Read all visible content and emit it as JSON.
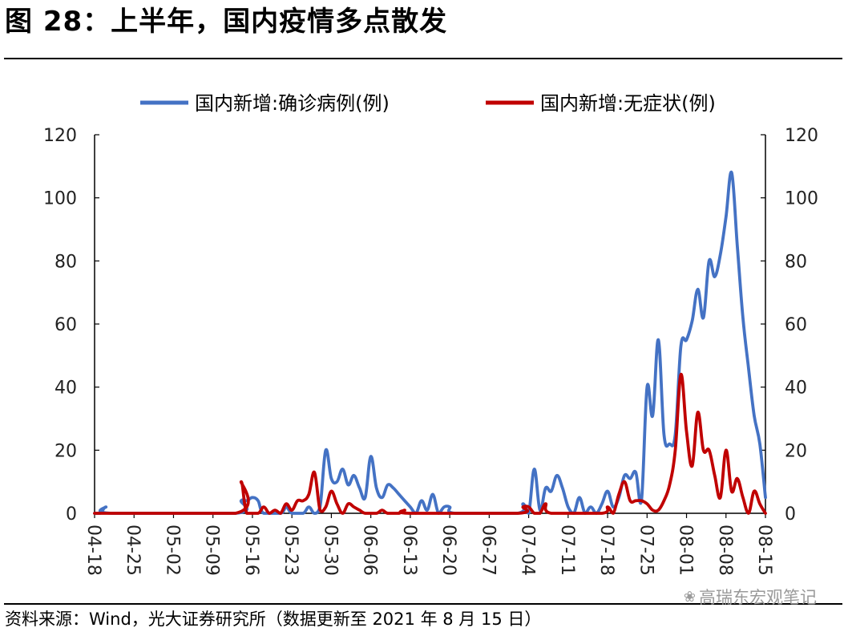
{
  "figure": {
    "title": "图 28：上半年，国内疫情多点散发",
    "source": "资料来源：Wind，光大证券研究所（数据更新至 2021 年 8 月 15 日）",
    "watermark": "高瑞东宏观笔记"
  },
  "chart_data": {
    "type": "line",
    "title": "",
    "xlabel": "",
    "ylabel": "",
    "ylim": [
      0,
      120
    ],
    "y2lim": [
      0,
      120
    ],
    "y_ticks": [
      "0",
      "20",
      "40",
      "60",
      "80",
      "100",
      "120"
    ],
    "y2_ticks": [
      "0",
      "20",
      "40",
      "60",
      "80",
      "100",
      "120"
    ],
    "x_range": [
      "2021-04-18",
      "2021-08-15"
    ],
    "x_ticks": [
      "04-18",
      "04-25",
      "05-02",
      "05-09",
      "05-16",
      "05-23",
      "05-30",
      "06-06",
      "06-13",
      "06-20",
      "06-27",
      "07-04",
      "07-11",
      "07-18",
      "07-25",
      "08-01",
      "08-08",
      "08-15"
    ],
    "legend_position": "top",
    "grid": false,
    "series": [
      {
        "name": "国内新增:确诊病例(例)",
        "color": "#4472C4",
        "axis": "left",
        "points": [
          [
            "2021-04-18",
            0
          ],
          [
            "2021-04-19",
            0
          ],
          [
            "2021-04-20",
            2
          ],
          [
            "2021-04-21",
            0
          ],
          [
            "2021-05-13",
            0
          ],
          [
            "2021-05-14",
            4
          ],
          [
            "2021-05-15",
            4
          ],
          [
            "2021-05-16",
            5
          ],
          [
            "2021-05-17",
            4
          ],
          [
            "2021-05-18",
            0
          ],
          [
            "2021-05-21",
            0
          ],
          [
            "2021-05-22",
            2
          ],
          [
            "2021-05-23",
            0
          ],
          [
            "2021-05-25",
            0
          ],
          [
            "2021-05-26",
            2
          ],
          [
            "2021-05-27",
            0
          ],
          [
            "2021-05-28",
            2
          ],
          [
            "2021-05-29",
            20
          ],
          [
            "2021-05-30",
            11
          ],
          [
            "2021-05-31",
            10
          ],
          [
            "2021-06-01",
            14
          ],
          [
            "2021-06-02",
            9
          ],
          [
            "2021-06-03",
            12
          ],
          [
            "2021-06-04",
            8
          ],
          [
            "2021-06-05",
            5
          ],
          [
            "2021-06-06",
            18
          ],
          [
            "2021-06-07",
            8
          ],
          [
            "2021-06-08",
            5
          ],
          [
            "2021-06-09",
            9
          ],
          [
            "2021-06-10",
            8
          ],
          [
            "2021-06-11",
            6
          ],
          [
            "2021-06-12",
            4
          ],
          [
            "2021-06-13",
            2
          ],
          [
            "2021-06-14",
            0
          ],
          [
            "2021-06-15",
            4
          ],
          [
            "2021-06-16",
            1
          ],
          [
            "2021-06-17",
            6
          ],
          [
            "2021-06-18",
            0
          ],
          [
            "2021-06-19",
            2
          ],
          [
            "2021-06-20",
            2
          ],
          [
            "2021-06-21",
            0
          ],
          [
            "2021-07-02",
            0
          ],
          [
            "2021-07-03",
            3
          ],
          [
            "2021-07-04",
            0
          ],
          [
            "2021-07-05",
            14
          ],
          [
            "2021-07-06",
            1
          ],
          [
            "2021-07-07",
            8
          ],
          [
            "2021-07-08",
            7
          ],
          [
            "2021-07-09",
            12
          ],
          [
            "2021-07-10",
            8
          ],
          [
            "2021-07-11",
            2
          ],
          [
            "2021-07-12",
            0
          ],
          [
            "2021-07-13",
            5
          ],
          [
            "2021-07-14",
            0
          ],
          [
            "2021-07-15",
            2
          ],
          [
            "2021-07-16",
            0
          ],
          [
            "2021-07-17",
            3
          ],
          [
            "2021-07-18",
            7
          ],
          [
            "2021-07-19",
            2
          ],
          [
            "2021-07-20",
            5
          ],
          [
            "2021-07-21",
            12
          ],
          [
            "2021-07-22",
            11
          ],
          [
            "2021-07-23",
            13
          ],
          [
            "2021-07-24",
            4
          ],
          [
            "2021-07-25",
            40
          ],
          [
            "2021-07-26",
            31
          ],
          [
            "2021-07-27",
            55
          ],
          [
            "2021-07-28",
            25
          ],
          [
            "2021-07-29",
            22
          ],
          [
            "2021-07-30",
            25
          ],
          [
            "2021-07-31",
            53
          ],
          [
            "2021-08-01",
            55
          ],
          [
            "2021-08-02",
            61
          ],
          [
            "2021-08-03",
            71
          ],
          [
            "2021-08-04",
            62
          ],
          [
            "2021-08-05",
            80
          ],
          [
            "2021-08-06",
            75
          ],
          [
            "2021-08-07",
            82
          ],
          [
            "2021-08-08",
            94
          ],
          [
            "2021-08-09",
            108
          ],
          [
            "2021-08-10",
            85
          ],
          [
            "2021-08-11",
            62
          ],
          [
            "2021-08-12",
            46
          ],
          [
            "2021-08-13",
            31
          ],
          [
            "2021-08-14",
            22
          ],
          [
            "2021-08-15",
            5
          ]
        ]
      },
      {
        "name": "国内新增:无症状(例)",
        "color": "#C00000",
        "axis": "right",
        "points": [
          [
            "2021-04-18",
            0
          ],
          [
            "2021-05-13",
            0
          ],
          [
            "2021-05-14",
            10
          ],
          [
            "2021-05-15",
            0
          ],
          [
            "2021-05-17",
            0
          ],
          [
            "2021-05-18",
            2
          ],
          [
            "2021-05-19",
            0
          ],
          [
            "2021-05-20",
            1
          ],
          [
            "2021-05-21",
            0
          ],
          [
            "2021-05-22",
            3
          ],
          [
            "2021-05-23",
            1
          ],
          [
            "2021-05-24",
            4
          ],
          [
            "2021-05-25",
            4
          ],
          [
            "2021-05-26",
            6
          ],
          [
            "2021-05-27",
            13
          ],
          [
            "2021-05-28",
            1
          ],
          [
            "2021-05-29",
            2
          ],
          [
            "2021-05-30",
            7
          ],
          [
            "2021-05-31",
            3
          ],
          [
            "2021-06-01",
            0
          ],
          [
            "2021-06-02",
            3
          ],
          [
            "2021-06-03",
            2
          ],
          [
            "2021-06-04",
            1
          ],
          [
            "2021-06-05",
            0
          ],
          [
            "2021-06-07",
            0
          ],
          [
            "2021-06-08",
            1
          ],
          [
            "2021-06-09",
            0
          ],
          [
            "2021-06-11",
            0
          ],
          [
            "2021-06-12",
            1
          ],
          [
            "2021-06-13",
            0
          ],
          [
            "2021-07-02",
            0
          ],
          [
            "2021-07-03",
            2
          ],
          [
            "2021-07-04",
            2
          ],
          [
            "2021-07-05",
            0
          ],
          [
            "2021-07-06",
            0
          ],
          [
            "2021-07-07",
            3
          ],
          [
            "2021-07-08",
            0
          ],
          [
            "2021-07-17",
            0
          ],
          [
            "2021-07-18",
            2
          ],
          [
            "2021-07-19",
            0
          ],
          [
            "2021-07-20",
            6
          ],
          [
            "2021-07-21",
            10
          ],
          [
            "2021-07-22",
            4
          ],
          [
            "2021-07-23",
            4
          ],
          [
            "2021-07-24",
            4
          ],
          [
            "2021-07-25",
            3
          ],
          [
            "2021-07-26",
            1
          ],
          [
            "2021-07-27",
            1
          ],
          [
            "2021-07-28",
            4
          ],
          [
            "2021-07-29",
            9
          ],
          [
            "2021-07-30",
            20
          ],
          [
            "2021-07-31",
            44
          ],
          [
            "2021-08-01",
            26
          ],
          [
            "2021-08-02",
            15
          ],
          [
            "2021-08-03",
            32
          ],
          [
            "2021-08-04",
            20
          ],
          [
            "2021-08-05",
            20
          ],
          [
            "2021-08-06",
            12
          ],
          [
            "2021-08-07",
            5
          ],
          [
            "2021-08-08",
            20
          ],
          [
            "2021-08-09",
            7
          ],
          [
            "2021-08-10",
            11
          ],
          [
            "2021-08-11",
            5
          ],
          [
            "2021-08-12",
            0
          ],
          [
            "2021-08-13",
            7
          ],
          [
            "2021-08-14",
            3
          ],
          [
            "2021-08-15",
            0
          ]
        ]
      }
    ]
  }
}
